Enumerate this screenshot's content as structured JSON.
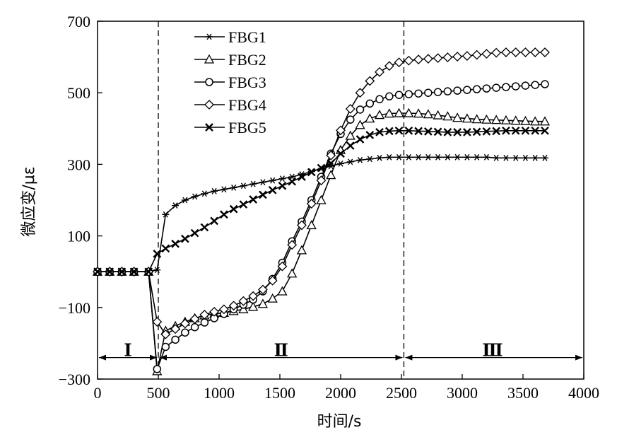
{
  "chart_data": {
    "type": "line",
    "title": "",
    "xlabel": "时间/s",
    "ylabel": "微应变/με",
    "xlim": [
      0,
      4000
    ],
    "ylim": [
      -300,
      700
    ],
    "xticks": [
      0,
      500,
      1000,
      1500,
      2000,
      2500,
      3000,
      3500,
      4000
    ],
    "yticks": [
      -300,
      -100,
      100,
      300,
      500,
      700
    ],
    "grid": false,
    "legend_position": "top-left",
    "phase_boundaries": [
      500,
      2520
    ],
    "phase_labels": [
      {
        "text": "Ⅰ",
        "x": 250,
        "y": -240
      },
      {
        "text": "Ⅱ",
        "x": 1510,
        "y": -240
      },
      {
        "text": "Ⅲ",
        "x": 3250,
        "y": -240
      }
    ],
    "phase_arrow_y": -240,
    "series": [
      {
        "name": "FBG1",
        "marker": "asterisk",
        "x": [
          0,
          100,
          200,
          300,
          420,
          490,
          560,
          640,
          720,
          800,
          880,
          960,
          1040,
          1120,
          1200,
          1280,
          1360,
          1440,
          1520,
          1600,
          1680,
          1760,
          1840,
          1920,
          2000,
          2080,
          2160,
          2240,
          2320,
          2400,
          2480,
          2560,
          2640,
          2720,
          2800,
          2880,
          2960,
          3040,
          3120,
          3200,
          3280,
          3360,
          3440,
          3520,
          3600,
          3680
        ],
        "y": [
          0,
          0,
          0,
          0,
          0,
          5,
          160,
          185,
          200,
          210,
          218,
          225,
          230,
          235,
          240,
          245,
          250,
          255,
          260,
          265,
          272,
          280,
          288,
          295,
          302,
          307,
          312,
          315,
          318,
          320,
          320,
          320,
          320,
          320,
          320,
          320,
          320,
          320,
          320,
          320,
          318,
          318,
          318,
          318,
          318,
          318
        ]
      },
      {
        "name": "FBG2",
        "marker": "triangle",
        "x": [
          0,
          100,
          200,
          300,
          420,
          490,
          560,
          640,
          720,
          800,
          880,
          960,
          1040,
          1120,
          1200,
          1280,
          1360,
          1440,
          1520,
          1600,
          1680,
          1760,
          1840,
          1920,
          2000,
          2080,
          2160,
          2240,
          2320,
          2400,
          2480,
          2560,
          2640,
          2720,
          2800,
          2880,
          2960,
          3040,
          3120,
          3200,
          3280,
          3360,
          3440,
          3520,
          3600,
          3680
        ],
        "y": [
          0,
          0,
          0,
          0,
          0,
          -278,
          -165,
          -152,
          -140,
          -130,
          -122,
          -118,
          -115,
          -110,
          -105,
          -98,
          -90,
          -75,
          -55,
          -5,
          60,
          130,
          200,
          270,
          340,
          380,
          410,
          428,
          438,
          442,
          443,
          443,
          442,
          440,
          437,
          434,
          430,
          428,
          426,
          425,
          424,
          423,
          422,
          421,
          420,
          420
        ]
      },
      {
        "name": "FBG3",
        "marker": "circle",
        "x": [
          0,
          100,
          200,
          300,
          420,
          490,
          560,
          640,
          720,
          800,
          880,
          960,
          1040,
          1120,
          1200,
          1280,
          1360,
          1440,
          1520,
          1600,
          1680,
          1760,
          1840,
          1920,
          2000,
          2080,
          2160,
          2240,
          2320,
          2400,
          2480,
          2560,
          2640,
          2720,
          2800,
          2880,
          2960,
          3040,
          3120,
          3200,
          3280,
          3360,
          3440,
          3520,
          3600,
          3680
        ],
        "y": [
          0,
          0,
          0,
          0,
          0,
          -272,
          -210,
          -190,
          -170,
          -155,
          -142,
          -130,
          -118,
          -105,
          -92,
          -78,
          -55,
          -20,
          25,
          85,
          140,
          200,
          265,
          330,
          385,
          425,
          453,
          470,
          482,
          490,
          494,
          496,
          498,
          500,
          502,
          504,
          506,
          508,
          510,
          512,
          514,
          516,
          518,
          520,
          522,
          524
        ]
      },
      {
        "name": "FBG4",
        "marker": "diamond",
        "x": [
          0,
          100,
          200,
          300,
          420,
          490,
          560,
          640,
          720,
          800,
          880,
          960,
          1040,
          1120,
          1200,
          1280,
          1360,
          1440,
          1520,
          1600,
          1680,
          1760,
          1840,
          1920,
          2000,
          2080,
          2160,
          2240,
          2320,
          2400,
          2480,
          2560,
          2640,
          2720,
          2800,
          2880,
          2960,
          3040,
          3120,
          3200,
          3280,
          3360,
          3440,
          3520,
          3600,
          3680
        ],
        "y": [
          0,
          0,
          0,
          0,
          0,
          -140,
          -175,
          -160,
          -145,
          -132,
          -120,
          -112,
          -105,
          -95,
          -82,
          -68,
          -50,
          -25,
          15,
          75,
          130,
          190,
          255,
          325,
          395,
          455,
          500,
          533,
          558,
          575,
          585,
          590,
          593,
          595,
          597,
          599,
          601,
          603,
          606,
          609,
          612,
          613,
          613,
          613,
          613,
          613
        ]
      },
      {
        "name": "FBG5",
        "marker": "cross",
        "x": [
          0,
          100,
          200,
          300,
          420,
          490,
          560,
          640,
          720,
          800,
          880,
          960,
          1040,
          1120,
          1200,
          1280,
          1360,
          1440,
          1520,
          1600,
          1680,
          1760,
          1840,
          1920,
          2000,
          2080,
          2160,
          2240,
          2320,
          2400,
          2480,
          2560,
          2640,
          2720,
          2800,
          2880,
          2960,
          3040,
          3120,
          3200,
          3280,
          3360,
          3440,
          3520,
          3600,
          3680
        ],
        "y": [
          0,
          0,
          0,
          0,
          0,
          50,
          65,
          78,
          92,
          108,
          124,
          142,
          160,
          175,
          188,
          202,
          215,
          228,
          240,
          252,
          265,
          278,
          290,
          303,
          330,
          352,
          370,
          382,
          390,
          393,
          394,
          394,
          393,
          392,
          391,
          390,
          390,
          390,
          391,
          392,
          393,
          394,
          394,
          394,
          394,
          394
        ]
      }
    ]
  }
}
